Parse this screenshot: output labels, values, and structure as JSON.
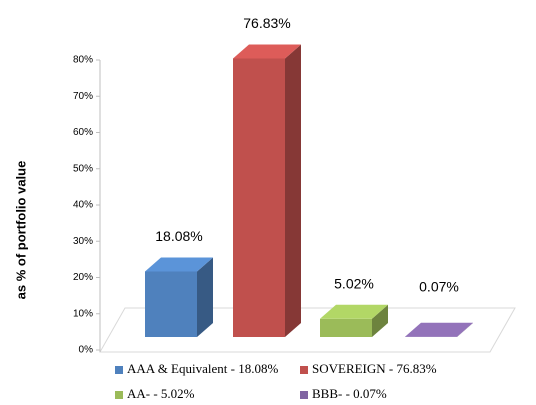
{
  "chart_data": {
    "type": "bar3d",
    "ylabel": "as % of portfolio value",
    "categories": [
      "AAA & Equivalent - 18.08%",
      "SOVEREIGN - 76.83%",
      "AA- - 5.02%",
      "BBB- - 0.07%"
    ],
    "values": [
      18.08,
      76.83,
      5.02,
      0.07
    ],
    "value_labels": [
      "18.08%",
      "76.83%",
      "5.02%",
      "0.07%"
    ],
    "colors": [
      "#4f81bd",
      "#c0504d",
      "#9bbb59",
      "#8064a2"
    ],
    "ylim": [
      0,
      80
    ],
    "yticks": [
      {
        "value": 0,
        "label": "0%"
      },
      {
        "value": 10,
        "label": "10%"
      },
      {
        "value": 20,
        "label": "20%"
      },
      {
        "value": 30,
        "label": "30%"
      },
      {
        "value": 40,
        "label": "40%"
      },
      {
        "value": 50,
        "label": "50%"
      },
      {
        "value": 60,
        "label": "60%"
      },
      {
        "value": 70,
        "label": "70%"
      },
      {
        "value": 80,
        "label": "80%"
      }
    ],
    "legend": "bottom"
  }
}
